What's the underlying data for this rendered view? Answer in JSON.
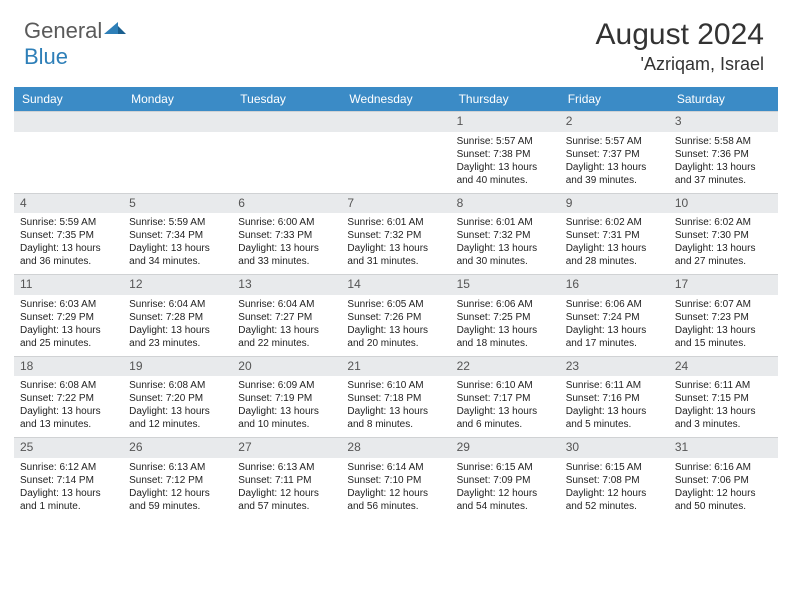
{
  "logo": {
    "text1": "General",
    "text2": "Blue"
  },
  "title": "August 2024",
  "location": "'Azriqam, Israel",
  "header_bg": "#3b8bc6",
  "daynum_bg": "#e8eaec",
  "dows": [
    "Sunday",
    "Monday",
    "Tuesday",
    "Wednesday",
    "Thursday",
    "Friday",
    "Saturday"
  ],
  "weeks": [
    [
      {
        "n": "",
        "empty": true
      },
      {
        "n": "",
        "empty": true
      },
      {
        "n": "",
        "empty": true
      },
      {
        "n": "",
        "empty": true
      },
      {
        "n": "1",
        "sr": "Sunrise: 5:57 AM",
        "ss": "Sunset: 7:38 PM",
        "dl": "Daylight: 13 hours and 40 minutes."
      },
      {
        "n": "2",
        "sr": "Sunrise: 5:57 AM",
        "ss": "Sunset: 7:37 PM",
        "dl": "Daylight: 13 hours and 39 minutes."
      },
      {
        "n": "3",
        "sr": "Sunrise: 5:58 AM",
        "ss": "Sunset: 7:36 PM",
        "dl": "Daylight: 13 hours and 37 minutes."
      }
    ],
    [
      {
        "n": "4",
        "sr": "Sunrise: 5:59 AM",
        "ss": "Sunset: 7:35 PM",
        "dl": "Daylight: 13 hours and 36 minutes."
      },
      {
        "n": "5",
        "sr": "Sunrise: 5:59 AM",
        "ss": "Sunset: 7:34 PM",
        "dl": "Daylight: 13 hours and 34 minutes."
      },
      {
        "n": "6",
        "sr": "Sunrise: 6:00 AM",
        "ss": "Sunset: 7:33 PM",
        "dl": "Daylight: 13 hours and 33 minutes."
      },
      {
        "n": "7",
        "sr": "Sunrise: 6:01 AM",
        "ss": "Sunset: 7:32 PM",
        "dl": "Daylight: 13 hours and 31 minutes."
      },
      {
        "n": "8",
        "sr": "Sunrise: 6:01 AM",
        "ss": "Sunset: 7:32 PM",
        "dl": "Daylight: 13 hours and 30 minutes."
      },
      {
        "n": "9",
        "sr": "Sunrise: 6:02 AM",
        "ss": "Sunset: 7:31 PM",
        "dl": "Daylight: 13 hours and 28 minutes."
      },
      {
        "n": "10",
        "sr": "Sunrise: 6:02 AM",
        "ss": "Sunset: 7:30 PM",
        "dl": "Daylight: 13 hours and 27 minutes."
      }
    ],
    [
      {
        "n": "11",
        "sr": "Sunrise: 6:03 AM",
        "ss": "Sunset: 7:29 PM",
        "dl": "Daylight: 13 hours and 25 minutes."
      },
      {
        "n": "12",
        "sr": "Sunrise: 6:04 AM",
        "ss": "Sunset: 7:28 PM",
        "dl": "Daylight: 13 hours and 23 minutes."
      },
      {
        "n": "13",
        "sr": "Sunrise: 6:04 AM",
        "ss": "Sunset: 7:27 PM",
        "dl": "Daylight: 13 hours and 22 minutes."
      },
      {
        "n": "14",
        "sr": "Sunrise: 6:05 AM",
        "ss": "Sunset: 7:26 PM",
        "dl": "Daylight: 13 hours and 20 minutes."
      },
      {
        "n": "15",
        "sr": "Sunrise: 6:06 AM",
        "ss": "Sunset: 7:25 PM",
        "dl": "Daylight: 13 hours and 18 minutes."
      },
      {
        "n": "16",
        "sr": "Sunrise: 6:06 AM",
        "ss": "Sunset: 7:24 PM",
        "dl": "Daylight: 13 hours and 17 minutes."
      },
      {
        "n": "17",
        "sr": "Sunrise: 6:07 AM",
        "ss": "Sunset: 7:23 PM",
        "dl": "Daylight: 13 hours and 15 minutes."
      }
    ],
    [
      {
        "n": "18",
        "sr": "Sunrise: 6:08 AM",
        "ss": "Sunset: 7:22 PM",
        "dl": "Daylight: 13 hours and 13 minutes."
      },
      {
        "n": "19",
        "sr": "Sunrise: 6:08 AM",
        "ss": "Sunset: 7:20 PM",
        "dl": "Daylight: 13 hours and 12 minutes."
      },
      {
        "n": "20",
        "sr": "Sunrise: 6:09 AM",
        "ss": "Sunset: 7:19 PM",
        "dl": "Daylight: 13 hours and 10 minutes."
      },
      {
        "n": "21",
        "sr": "Sunrise: 6:10 AM",
        "ss": "Sunset: 7:18 PM",
        "dl": "Daylight: 13 hours and 8 minutes."
      },
      {
        "n": "22",
        "sr": "Sunrise: 6:10 AM",
        "ss": "Sunset: 7:17 PM",
        "dl": "Daylight: 13 hours and 6 minutes."
      },
      {
        "n": "23",
        "sr": "Sunrise: 6:11 AM",
        "ss": "Sunset: 7:16 PM",
        "dl": "Daylight: 13 hours and 5 minutes."
      },
      {
        "n": "24",
        "sr": "Sunrise: 6:11 AM",
        "ss": "Sunset: 7:15 PM",
        "dl": "Daylight: 13 hours and 3 minutes."
      }
    ],
    [
      {
        "n": "25",
        "sr": "Sunrise: 6:12 AM",
        "ss": "Sunset: 7:14 PM",
        "dl": "Daylight: 13 hours and 1 minute."
      },
      {
        "n": "26",
        "sr": "Sunrise: 6:13 AM",
        "ss": "Sunset: 7:12 PM",
        "dl": "Daylight: 12 hours and 59 minutes."
      },
      {
        "n": "27",
        "sr": "Sunrise: 6:13 AM",
        "ss": "Sunset: 7:11 PM",
        "dl": "Daylight: 12 hours and 57 minutes."
      },
      {
        "n": "28",
        "sr": "Sunrise: 6:14 AM",
        "ss": "Sunset: 7:10 PM",
        "dl": "Daylight: 12 hours and 56 minutes."
      },
      {
        "n": "29",
        "sr": "Sunrise: 6:15 AM",
        "ss": "Sunset: 7:09 PM",
        "dl": "Daylight: 12 hours and 54 minutes."
      },
      {
        "n": "30",
        "sr": "Sunrise: 6:15 AM",
        "ss": "Sunset: 7:08 PM",
        "dl": "Daylight: 12 hours and 52 minutes."
      },
      {
        "n": "31",
        "sr": "Sunrise: 6:16 AM",
        "ss": "Sunset: 7:06 PM",
        "dl": "Daylight: 12 hours and 50 minutes."
      }
    ]
  ]
}
